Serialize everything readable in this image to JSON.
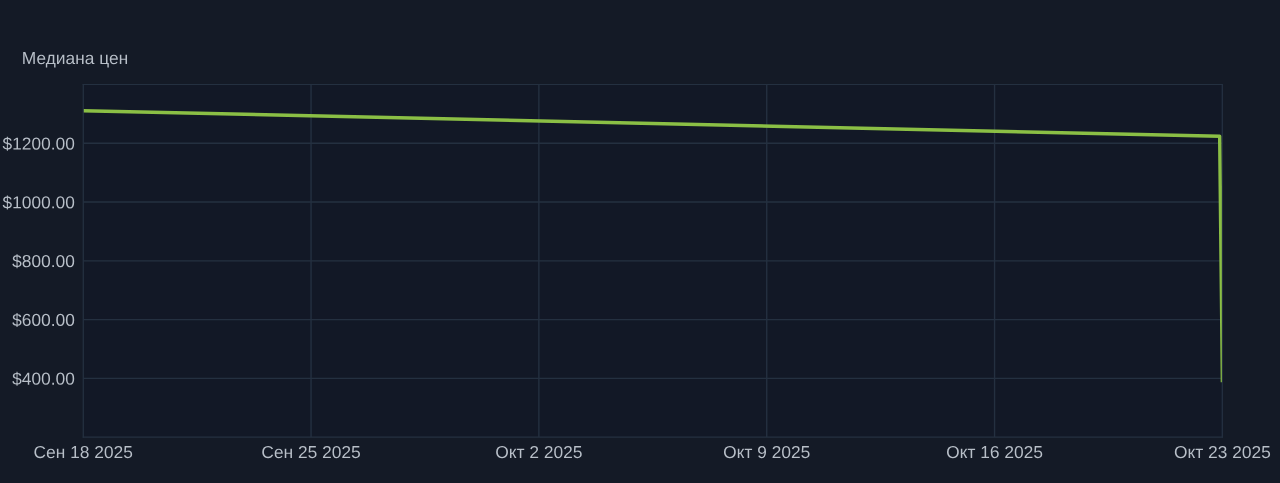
{
  "chart_data": {
    "type": "line",
    "title": "Медиана цен",
    "x": [
      "2025-09-18",
      "2025-10-22T22:00",
      "2025-10-23"
    ],
    "series": [
      {
        "color": "#8bbf45",
        "values": [
          1311,
          1224,
          393
        ]
      }
    ],
    "xlim": [
      "2025-09-18",
      "2025-10-23"
    ],
    "xticks": [
      {
        "value": "2025-09-18",
        "label": "Сен 18 2025"
      },
      {
        "value": "2025-09-25",
        "label": "Сен 25 2025"
      },
      {
        "value": "2025-10-02",
        "label": "Окт 2 2025"
      },
      {
        "value": "2025-10-09",
        "label": "Окт 9 2025"
      },
      {
        "value": "2025-10-16",
        "label": "Окт 16 2025"
      },
      {
        "value": "2025-10-23",
        "label": "Окт 23 2025"
      }
    ],
    "ylim": [
      200,
      1400
    ],
    "yticks": [
      {
        "value": 400,
        "label": "$400.00"
      },
      {
        "value": 600,
        "label": "$600.00"
      },
      {
        "value": 800,
        "label": "$800.00"
      },
      {
        "value": 1000,
        "label": "$1000.00"
      },
      {
        "value": 1200,
        "label": "$1200.00"
      }
    ],
    "grid": true,
    "marker": "none",
    "line_style": "solid"
  }
}
